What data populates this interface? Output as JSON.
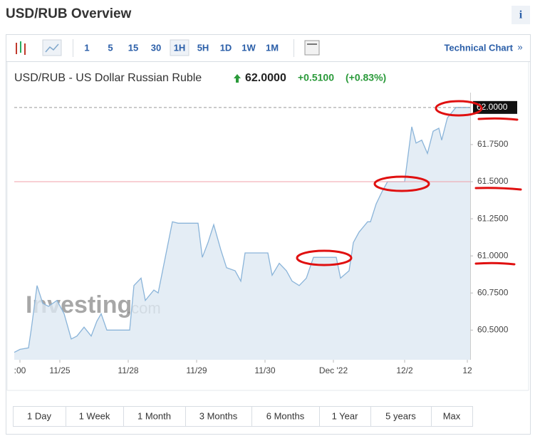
{
  "page": {
    "title": "USD/RUB Overview",
    "info_icon": "i"
  },
  "toolbar": {
    "intervals": [
      "1",
      "5",
      "15",
      "30",
      "1H",
      "5H",
      "1D",
      "1W",
      "1M"
    ],
    "technical_chart": "Technical Chart",
    "technical_chart_arrow": "»"
  },
  "quote": {
    "name": "USD/RUB - US Dollar Russian Ruble",
    "price": "62.0000",
    "change": "+0.5100",
    "change_percent": "(+0.83%)"
  },
  "watermark": {
    "brand": "Investing",
    "suffix": ".com"
  },
  "ranges": [
    "1 Day",
    "1 Week",
    "1 Month",
    "3 Months",
    "6 Months",
    "1 Year",
    "5 years",
    "Max"
  ],
  "chart_data": {
    "type": "area",
    "color": "#8ab4d9",
    "fill": "#dde8f3",
    "x": [
      0,
      2,
      5,
      6,
      8,
      10,
      12,
      15,
      17.5,
      20,
      22,
      24.5,
      27,
      29,
      30.5,
      32.5,
      40.5,
      42,
      44.5,
      46,
      49,
      50.5,
      53,
      55.5,
      57.5,
      64.5,
      66,
      68,
      70,
      72.5,
      74.5,
      77.5,
      79.5,
      81,
      89,
      90.5,
      93,
      95.5,
      97.5,
      100,
      102.5,
      105,
      113,
      114.5,
      117.5,
      119,
      121,
      124,
      125,
      127,
      129,
      131,
      137,
      139.5,
      141,
      143,
      145,
      147,
      149,
      150,
      152,
      155,
      160
    ],
    "values": [
      60.35,
      60.37,
      60.38,
      60.51,
      60.8,
      60.68,
      60.66,
      60.7,
      60.61,
      60.44,
      60.46,
      60.52,
      60.46,
      60.56,
      60.61,
      60.5,
      60.5,
      60.8,
      60.85,
      60.7,
      60.77,
      60.75,
      60.99,
      61.23,
      61.22,
      61.22,
      60.99,
      61.09,
      61.21,
      61.04,
      60.92,
      60.9,
      60.83,
      61.02,
      61.02,
      60.87,
      60.95,
      60.9,
      60.83,
      60.8,
      60.85,
      60.99,
      60.99,
      60.85,
      60.9,
      61.09,
      61.16,
      61.23,
      61.23,
      61.35,
      61.43,
      61.5,
      61.5,
      61.87,
      61.76,
      61.78,
      61.69,
      61.84,
      61.86,
      61.78,
      61.93,
      62.0,
      62.0
    ],
    "xlim": [
      0,
      160
    ],
    "ylim": [
      60.3,
      62.1
    ],
    "xticks": [
      {
        "value": 2,
        "label": ":00"
      },
      {
        "value": 16,
        "label": "11/25"
      },
      {
        "value": 40,
        "label": "11/28"
      },
      {
        "value": 64,
        "label": "11/29"
      },
      {
        "value": 88,
        "label": "11/30"
      },
      {
        "value": 112,
        "label": "Dec '22"
      },
      {
        "value": 137,
        "label": "12/2"
      },
      {
        "value": 159,
        "label": "12"
      }
    ],
    "yticks": [
      {
        "value": 60.5,
        "label": "60.5000"
      },
      {
        "value": 60.75,
        "label": "60.7500"
      },
      {
        "value": 61,
        "label": "61.0000"
      },
      {
        "value": 61.25,
        "label": "61.2500"
      },
      {
        "value": 61.5,
        "label": "61.5000"
      },
      {
        "value": 61.75,
        "label": "61.7500"
      }
    ],
    "reference_line": 61.5,
    "reference_color": "#f0a0a8",
    "current_value": 62,
    "current_label": "62.0000"
  }
}
